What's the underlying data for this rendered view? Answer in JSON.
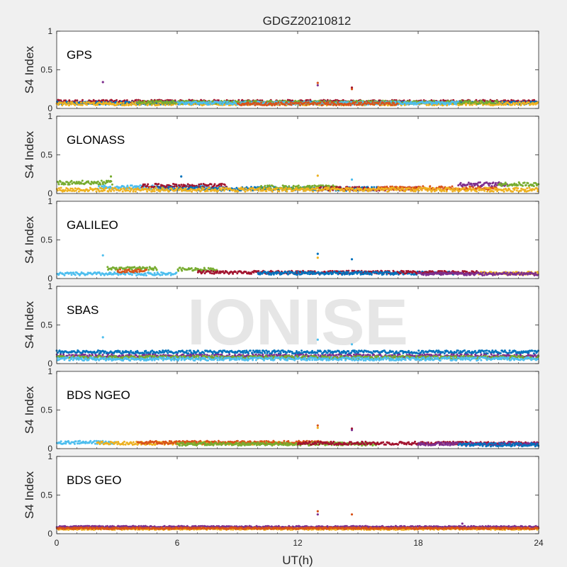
{
  "figure": {
    "title": "GDGZ20210812",
    "watermark": "IONISE",
    "background": "#f0f0f0"
  },
  "chart_data": {
    "type": "scatter",
    "title": "GDGZ20210812",
    "xlabel": "UT(h)",
    "ylabel": "S4 Index",
    "xlim": [
      0,
      24
    ],
    "ylim": [
      0,
      1
    ],
    "xticks": [
      "0",
      "6",
      "12",
      "18",
      "24"
    ],
    "yticks": [
      "0",
      "0.5",
      "1"
    ],
    "grid": false,
    "colors": [
      "#0072BD",
      "#D95319",
      "#EDB120",
      "#7E2F8E",
      "#77AC30",
      "#4DBEEE",
      "#A2142F"
    ],
    "panels": [
      {
        "label": "GPS",
        "baseline": 0.08,
        "spread": 0.04,
        "segments": [
          {
            "color": "#A2142F",
            "x0": 0,
            "x1": 24,
            "level": 0.09
          },
          {
            "color": "#0072BD",
            "x0": 0,
            "x1": 24,
            "level": 0.07
          },
          {
            "color": "#EDB120",
            "x0": 0,
            "x1": 24,
            "level": 0.06
          },
          {
            "color": "#77AC30",
            "x0": 4,
            "x1": 22,
            "level": 0.08
          },
          {
            "color": "#4DBEEE",
            "x0": 6,
            "x1": 20,
            "level": 0.07
          },
          {
            "color": "#D95319",
            "x0": 9,
            "x1": 17,
            "level": 0.06
          }
        ],
        "spikes": [
          {
            "x": 2.3,
            "y": 0.34,
            "color": "#7E2F8E"
          },
          {
            "x": 13.0,
            "y": 0.33,
            "color": "#D95319"
          },
          {
            "x": 13.0,
            "y": 0.3,
            "color": "#7E2F8E"
          },
          {
            "x": 14.7,
            "y": 0.27,
            "color": "#A2142F"
          },
          {
            "x": 14.7,
            "y": 0.25,
            "color": "#D95319"
          }
        ]
      },
      {
        "label": "GLONASS",
        "baseline": 0.08,
        "spread": 0.05,
        "segments": [
          {
            "color": "#77AC30",
            "x0": 0,
            "x1": 2.8,
            "level": 0.14
          },
          {
            "color": "#4DBEEE",
            "x0": 2,
            "x1": 8,
            "level": 0.08
          },
          {
            "color": "#A2142F",
            "x0": 4.2,
            "x1": 8.5,
            "level": 0.1
          },
          {
            "color": "#0072BD",
            "x0": 5,
            "x1": 16,
            "level": 0.06
          },
          {
            "color": "#77AC30",
            "x0": 10,
            "x1": 14,
            "level": 0.08
          },
          {
            "color": "#A2142F",
            "x0": 13,
            "x1": 18,
            "level": 0.06
          },
          {
            "color": "#D95319",
            "x0": 16,
            "x1": 22,
            "level": 0.07
          },
          {
            "color": "#7E2F8E",
            "x0": 20,
            "x1": 22.5,
            "level": 0.12
          },
          {
            "color": "#77AC30",
            "x0": 22,
            "x1": 24,
            "level": 0.12
          },
          {
            "color": "#EDB120",
            "x0": 0,
            "x1": 24,
            "level": 0.05
          }
        ],
        "spikes": [
          {
            "x": 2.7,
            "y": 0.22,
            "color": "#77AC30"
          },
          {
            "x": 6.2,
            "y": 0.22,
            "color": "#0072BD"
          },
          {
            "x": 13.0,
            "y": 0.23,
            "color": "#EDB120"
          },
          {
            "x": 14.7,
            "y": 0.18,
            "color": "#4DBEEE"
          }
        ]
      },
      {
        "label": "GALILEO",
        "baseline": 0.07,
        "spread": 0.04,
        "segments": [
          {
            "color": "#4DBEEE",
            "x0": 0,
            "x1": 6,
            "level": 0.06
          },
          {
            "color": "#77AC30",
            "x0": 2.5,
            "x1": 5,
            "level": 0.13
          },
          {
            "color": "#D95319",
            "x0": 3,
            "x1": 4.5,
            "level": 0.1
          },
          {
            "color": "#77AC30",
            "x0": 6,
            "x1": 8,
            "level": 0.12
          },
          {
            "color": "#A2142F",
            "x0": 7,
            "x1": 17,
            "level": 0.08
          },
          {
            "color": "#0072BD",
            "x0": 10,
            "x1": 20,
            "level": 0.07
          },
          {
            "color": "#A2142F",
            "x0": 17,
            "x1": 21,
            "level": 0.08
          },
          {
            "color": "#EDB120",
            "x0": 21,
            "x1": 24,
            "level": 0.07
          },
          {
            "color": "#7E2F8E",
            "x0": 18,
            "x1": 24,
            "level": 0.06
          }
        ],
        "spikes": [
          {
            "x": 2.3,
            "y": 0.3,
            "color": "#4DBEEE"
          },
          {
            "x": 13.0,
            "y": 0.32,
            "color": "#0072BD"
          },
          {
            "x": 13.0,
            "y": 0.27,
            "color": "#EDB120"
          },
          {
            "x": 14.7,
            "y": 0.25,
            "color": "#0072BD"
          }
        ]
      },
      {
        "label": "SBAS",
        "baseline": 0.1,
        "spread": 0.04,
        "segments": [
          {
            "color": "#0072BD",
            "x0": 0,
            "x1": 24,
            "level": 0.15
          },
          {
            "color": "#7E2F8E",
            "x0": 0,
            "x1": 24,
            "level": 0.1
          },
          {
            "color": "#77AC30",
            "x0": 0,
            "x1": 24,
            "level": 0.08
          },
          {
            "color": "#4DBEEE",
            "x0": 0,
            "x1": 24,
            "level": 0.06
          }
        ],
        "spikes": [
          {
            "x": 2.3,
            "y": 0.34,
            "color": "#4DBEEE"
          },
          {
            "x": 13.0,
            "y": 0.31,
            "color": "#4DBEEE"
          },
          {
            "x": 14.7,
            "y": 0.25,
            "color": "#4DBEEE"
          }
        ]
      },
      {
        "label": "BDS NGEO",
        "baseline": 0.07,
        "spread": 0.04,
        "segments": [
          {
            "color": "#4DBEEE",
            "x0": 0,
            "x1": 3,
            "level": 0.08
          },
          {
            "color": "#EDB120",
            "x0": 2,
            "x1": 12,
            "level": 0.07
          },
          {
            "color": "#D95319",
            "x0": 4,
            "x1": 14,
            "level": 0.08
          },
          {
            "color": "#77AC30",
            "x0": 6,
            "x1": 16,
            "level": 0.06
          },
          {
            "color": "#A2142F",
            "x0": 12,
            "x1": 24,
            "level": 0.07
          },
          {
            "color": "#7E2F8E",
            "x0": 18,
            "x1": 24,
            "level": 0.06
          },
          {
            "color": "#0072BD",
            "x0": 20,
            "x1": 24,
            "level": 0.05
          }
        ],
        "spikes": [
          {
            "x": 13.0,
            "y": 0.3,
            "color": "#D95319"
          },
          {
            "x": 13.0,
            "y": 0.27,
            "color": "#EDB120"
          },
          {
            "x": 14.7,
            "y": 0.26,
            "color": "#A2142F"
          },
          {
            "x": 14.7,
            "y": 0.24,
            "color": "#7E2F8E"
          }
        ]
      },
      {
        "label": "BDS GEO",
        "baseline": 0.08,
        "spread": 0.02,
        "segments": [
          {
            "color": "#7E2F8E",
            "x0": 0,
            "x1": 24,
            "level": 0.09
          },
          {
            "color": "#EDB120",
            "x0": 0,
            "x1": 24,
            "level": 0.06
          },
          {
            "color": "#D95319",
            "x0": 0,
            "x1": 24,
            "level": 0.07
          }
        ],
        "spikes": [
          {
            "x": 13.0,
            "y": 0.29,
            "color": "#D95319"
          },
          {
            "x": 13.0,
            "y": 0.25,
            "color": "#7E2F8E"
          },
          {
            "x": 14.7,
            "y": 0.25,
            "color": "#D95319"
          },
          {
            "x": 20.2,
            "y": 0.13,
            "color": "#7E2F8E"
          }
        ]
      }
    ]
  }
}
